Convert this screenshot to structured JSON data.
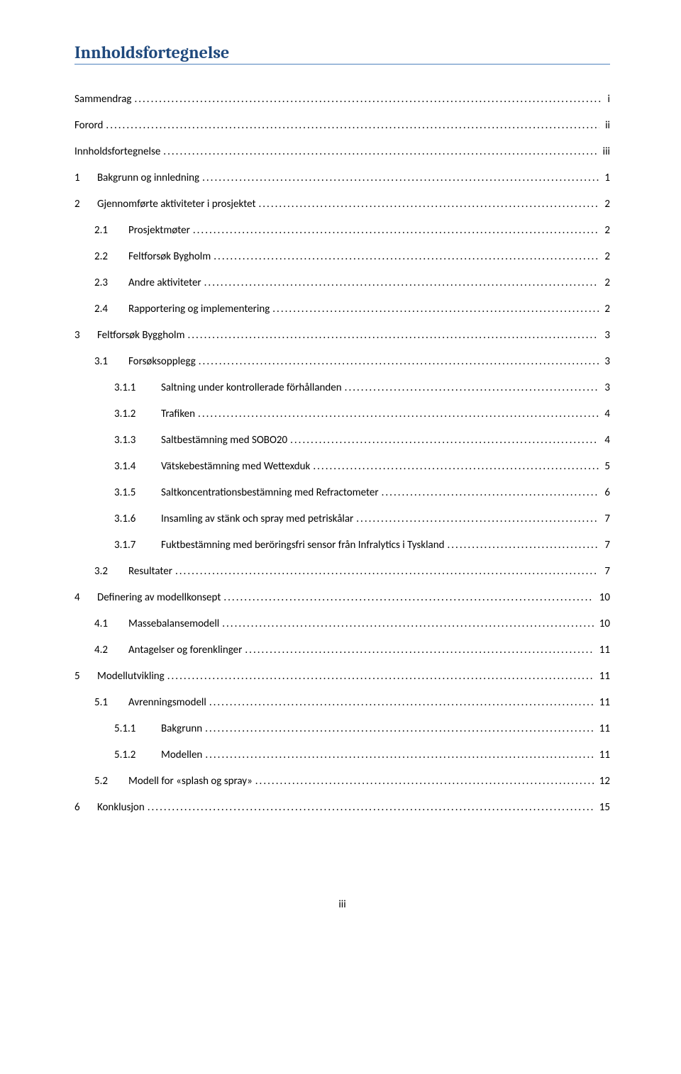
{
  "heading": "Innholdsfortegnelse",
  "page_number": "iii",
  "colors": {
    "heading_text": "#1f497d",
    "heading_rule": "#4f81bd",
    "body_text": "#000000",
    "background": "#ffffff"
  },
  "typography": {
    "heading_font": "Cambria",
    "heading_size_pt": 18,
    "heading_weight": "bold",
    "body_font": "Calibri",
    "body_size_pt": 11
  },
  "toc": [
    {
      "level": 1,
      "num": "",
      "title": "Sammendrag",
      "page": "i"
    },
    {
      "level": 1,
      "num": "",
      "title": "Forord",
      "page": "ii"
    },
    {
      "level": 1,
      "num": "",
      "title": "Innholdsfortegnelse",
      "page": "iii"
    },
    {
      "level": 1,
      "num": "1",
      "title": "Bakgrunn og innledning",
      "page": "1"
    },
    {
      "level": 1,
      "num": "2",
      "title": "Gjennomførte aktiviteter i prosjektet",
      "page": "2"
    },
    {
      "level": 2,
      "num": "2.1",
      "title": "Prosjektmøter",
      "page": "2"
    },
    {
      "level": 2,
      "num": "2.2",
      "title": "Feltforsøk Bygholm",
      "page": "2"
    },
    {
      "level": 2,
      "num": "2.3",
      "title": "Andre aktiviteter",
      "page": "2"
    },
    {
      "level": 2,
      "num": "2.4",
      "title": "Rapportering og implementering",
      "page": "2"
    },
    {
      "level": 1,
      "num": "3",
      "title": "Feltforsøk Byggholm",
      "page": "3"
    },
    {
      "level": 2,
      "num": "3.1",
      "title": "Forsøksopplegg",
      "page": "3"
    },
    {
      "level": 3,
      "num": "3.1.1",
      "title": "Saltning under kontrollerade förhållanden",
      "page": "3"
    },
    {
      "level": 3,
      "num": "3.1.2",
      "title": "Trafiken",
      "page": "4"
    },
    {
      "level": 3,
      "num": "3.1.3",
      "title": "Saltbestämning med SOBO20",
      "page": "4"
    },
    {
      "level": 3,
      "num": "3.1.4",
      "title": "Vätskebestämning med Wettexduk",
      "page": "5"
    },
    {
      "level": 3,
      "num": "3.1.5",
      "title": "Saltkoncentrationsbestämning med Refractometer",
      "page": "6"
    },
    {
      "level": 3,
      "num": "3.1.6",
      "title": "Insamling av stänk och spray med petriskålar",
      "page": "7"
    },
    {
      "level": 3,
      "num": "3.1.7",
      "title": "Fuktbestämning med beröringsfri sensor från Infralytics i Tyskland",
      "page": "7"
    },
    {
      "level": 2,
      "num": "3.2",
      "title": "Resultater",
      "page": "7"
    },
    {
      "level": 1,
      "num": "4",
      "title": "Definering av modellkonsept",
      "page": "10"
    },
    {
      "level": 2,
      "num": "4.1",
      "title": "Massebalansemodell",
      "page": "10"
    },
    {
      "level": 2,
      "num": "4.2",
      "title": "Antagelser og forenklinger",
      "page": "11"
    },
    {
      "level": 1,
      "num": "5",
      "title": "Modellutvikling",
      "page": "11"
    },
    {
      "level": 2,
      "num": "5.1",
      "title": "Avrenningsmodell",
      "page": "11"
    },
    {
      "level": 3,
      "num": "5.1.1",
      "title": "Bakgrunn",
      "page": "11"
    },
    {
      "level": 3,
      "num": "5.1.2",
      "title": "Modellen",
      "page": "11"
    },
    {
      "level": 2,
      "num": "5.2",
      "title": "Modell for «splash og spray»",
      "page": "12"
    },
    {
      "level": 1,
      "num": "6",
      "title": "Konklusjon",
      "page": "15"
    }
  ]
}
